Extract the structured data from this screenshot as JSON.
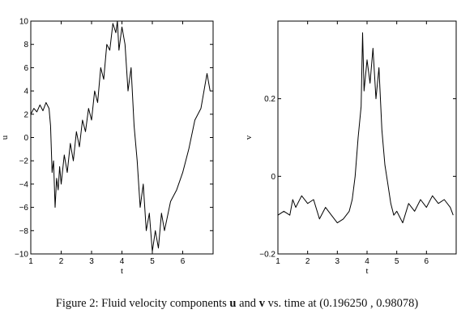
{
  "caption": {
    "prefix": "Figure 2: Fluid velocity components ",
    "var1": "u",
    "mid": " and ",
    "var2": "v",
    "suffix": " vs. time at (0.196250 , 0.98078)"
  },
  "chart_data": [
    {
      "type": "line",
      "title": "",
      "xlabel": "t",
      "ylabel": "u",
      "xlim": [
        1,
        7
      ],
      "ylim": [
        -10,
        10
      ],
      "xticks": [
        1,
        2,
        3,
        4,
        5,
        6
      ],
      "yticks": [
        -10,
        -8,
        -6,
        -4,
        -2,
        0,
        2,
        4,
        6,
        8,
        10
      ],
      "tick_labels_x": [
        "1",
        "2",
        "3",
        "4",
        "5",
        "6"
      ],
      "tick_labels_y": [
        "−10",
        "−8",
        "−6",
        "−4",
        "−2",
        "0",
        "2",
        "4",
        "6",
        "8",
        "10"
      ],
      "grid": false,
      "series": [
        {
          "color": "#000000",
          "x": [
            1.0,
            1.1,
            1.2,
            1.3,
            1.4,
            1.5,
            1.6,
            1.65,
            1.7,
            1.75,
            1.8,
            1.85,
            1.9,
            1.95,
            2.0,
            2.1,
            2.2,
            2.3,
            2.4,
            2.5,
            2.6,
            2.7,
            2.8,
            2.9,
            3.0,
            3.1,
            3.2,
            3.3,
            3.4,
            3.5,
            3.6,
            3.7,
            3.8,
            3.85,
            3.9,
            4.0,
            4.1,
            4.2,
            4.3,
            4.4,
            4.5,
            4.6,
            4.7,
            4.8,
            4.9,
            5.0,
            5.1,
            5.2,
            5.3,
            5.4,
            5.6,
            5.8,
            6.0,
            6.2,
            6.4,
            6.6,
            6.8,
            6.9
          ],
          "y": [
            2.0,
            2.5,
            2.2,
            2.8,
            2.3,
            3.0,
            2.5,
            1.0,
            -3.0,
            -2.0,
            -6.0,
            -3.5,
            -4.5,
            -2.5,
            -4.0,
            -1.5,
            -3.0,
            -0.5,
            -2.0,
            0.5,
            -0.8,
            1.5,
            0.5,
            2.5,
            1.5,
            4.0,
            3.0,
            6.0,
            5.0,
            8.0,
            7.5,
            9.8,
            9.0,
            10.0,
            7.5,
            9.5,
            8.0,
            4.0,
            6.0,
            1.0,
            -2.0,
            -6.0,
            -4.0,
            -8.0,
            -6.5,
            -9.8,
            -8.0,
            -9.5,
            -6.5,
            -8.0,
            -5.5,
            -4.5,
            -3.0,
            -1.0,
            1.5,
            2.5,
            5.5,
            4.0
          ]
        }
      ]
    },
    {
      "type": "line",
      "title": "",
      "xlabel": "t",
      "ylabel": "v",
      "xlim": [
        1,
        7
      ],
      "ylim": [
        -0.2,
        0.4
      ],
      "xticks": [
        1,
        2,
        3,
        4,
        5,
        6
      ],
      "yticks": [
        -0.2,
        0,
        0.2
      ],
      "tick_labels_x": [
        "1",
        "2",
        "3",
        "4",
        "5",
        "6"
      ],
      "tick_labels_y": [
        "−0.2",
        "0",
        "0.2"
      ],
      "grid": false,
      "series": [
        {
          "color": "#000000",
          "x": [
            1.0,
            1.2,
            1.4,
            1.5,
            1.6,
            1.8,
            2.0,
            2.2,
            2.4,
            2.6,
            2.8,
            3.0,
            3.2,
            3.4,
            3.5,
            3.6,
            3.7,
            3.8,
            3.85,
            3.9,
            4.0,
            4.1,
            4.2,
            4.3,
            4.4,
            4.5,
            4.6,
            4.7,
            4.8,
            4.9,
            5.0,
            5.2,
            5.4,
            5.6,
            5.8,
            6.0,
            6.2,
            6.4,
            6.6,
            6.8,
            6.9
          ],
          "y": [
            -0.1,
            -0.09,
            -0.1,
            -0.06,
            -0.08,
            -0.05,
            -0.07,
            -0.06,
            -0.11,
            -0.08,
            -0.1,
            -0.12,
            -0.11,
            -0.09,
            -0.06,
            0.0,
            0.1,
            0.18,
            0.37,
            0.22,
            0.3,
            0.24,
            0.33,
            0.2,
            0.28,
            0.12,
            0.03,
            -0.02,
            -0.07,
            -0.1,
            -0.09,
            -0.12,
            -0.07,
            -0.09,
            -0.06,
            -0.08,
            -0.05,
            -0.07,
            -0.06,
            -0.08,
            -0.1
          ]
        }
      ]
    }
  ]
}
